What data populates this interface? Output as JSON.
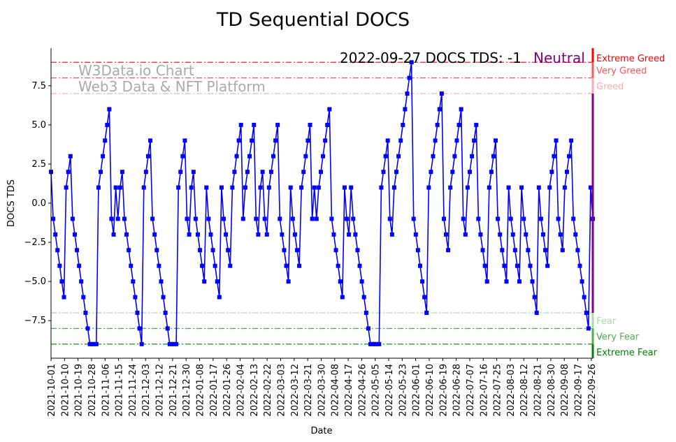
{
  "chart_data": {
    "type": "line",
    "title": "TD Sequential DOCS",
    "xlabel": "Date",
    "ylabel": "DOCS TDS",
    "ylim": [
      -9.9,
      9.9
    ],
    "yticks": [
      -7.5,
      -5.0,
      -2.5,
      0.0,
      2.5,
      5.0,
      7.5
    ],
    "ytick_labels": [
      "−7.5",
      "−5.0",
      "−2.5",
      "0.0",
      "2.5",
      "5.0",
      "7.5"
    ],
    "x_start": "2021-10-01",
    "x_end": "2022-09-27",
    "xtick_labels": [
      "2021-10-01",
      "2021-10-10",
      "2021-10-19",
      "2021-10-28",
      "2021-11-06",
      "2021-11-15",
      "2021-11-24",
      "2021-12-03",
      "2021-12-12",
      "2021-12-21",
      "2021-12-30",
      "2022-01-08",
      "2022-01-17",
      "2022-01-26",
      "2022-02-04",
      "2022-02-13",
      "2022-02-22",
      "2022-03-03",
      "2022-03-12",
      "2022-03-21",
      "2022-03-30",
      "2022-04-08",
      "2022-04-17",
      "2022-04-26",
      "2022-05-05",
      "2022-05-14",
      "2022-05-23",
      "2022-06-01",
      "2022-06-10",
      "2022-06-19",
      "2022-06-28",
      "2022-07-07",
      "2022-07-16",
      "2022-07-25",
      "2022-08-03",
      "2022-08-12",
      "2022-08-21",
      "2022-08-30",
      "2022-09-08",
      "2022-09-17",
      "2022-09-26"
    ],
    "series": [
      {
        "name": "DOCS TDS",
        "color": "#0000ff",
        "values": [
          2,
          -1,
          -2,
          -3,
          -4,
          -5,
          -6,
          1,
          2,
          3,
          -1,
          -2,
          -3,
          -4,
          -5,
          -6,
          -7,
          -8,
          -9,
          -9,
          -9,
          -9,
          1,
          2,
          3,
          4,
          5,
          6,
          -1,
          -2,
          1,
          -1,
          1,
          2,
          -1,
          -2,
          -3,
          -4,
          -5,
          -6,
          -7,
          -8,
          -9,
          1,
          2,
          3,
          4,
          -1,
          -2,
          -3,
          -4,
          -5,
          -6,
          -7,
          -8,
          -9,
          -9,
          -9,
          -9,
          1,
          2,
          3,
          4,
          -1,
          -2,
          1,
          2,
          -1,
          -2,
          -3,
          -4,
          -5,
          1,
          -1,
          -2,
          -3,
          -4,
          -5,
          -6,
          1,
          -1,
          -2,
          -3,
          -4,
          1,
          2,
          3,
          4,
          5,
          -1,
          1,
          2,
          3,
          4,
          5,
          -1,
          -2,
          1,
          2,
          -1,
          -2,
          1,
          2,
          3,
          4,
          5,
          -1,
          -2,
          -3,
          -4,
          -5,
          1,
          -1,
          -2,
          -3,
          -4,
          1,
          2,
          3,
          4,
          5,
          -1,
          1,
          -1,
          1,
          2,
          3,
          4,
          5,
          6,
          -1,
          -2,
          -3,
          -4,
          -5,
          -6,
          1,
          -1,
          -2,
          1,
          -1,
          -2,
          -3,
          -4,
          -5,
          -6,
          -7,
          -8,
          -9,
          -9,
          -9,
          -9,
          -9,
          1,
          2,
          3,
          4,
          -1,
          -2,
          1,
          2,
          3,
          4,
          5,
          6,
          7,
          8,
          9,
          -1,
          -2,
          -3,
          -4,
          -5,
          -6,
          -7,
          1,
          2,
          3,
          4,
          5,
          6,
          7,
          -1,
          -2,
          -3,
          1,
          2,
          3,
          4,
          5,
          6,
          -1,
          -2,
          1,
          2,
          3,
          4,
          5,
          -1,
          -2,
          -3,
          -4,
          -5,
          1,
          2,
          3,
          4,
          -1,
          -2,
          -3,
          -4,
          -5,
          1,
          -1,
          -2,
          -3,
          -4,
          -5,
          1,
          -1,
          -2,
          -3,
          -4,
          -5,
          -6,
          -7,
          1,
          -1,
          -2,
          -3,
          -4,
          1,
          2,
          3,
          4,
          -1,
          -2,
          -3,
          1,
          2,
          3,
          4,
          -1,
          -2,
          -3,
          -4,
          -5,
          -6,
          -7,
          -8,
          1,
          -1
        ]
      }
    ],
    "levels": [
      {
        "value": 9,
        "label": "Extreme Greed",
        "color": "#ff0000"
      },
      {
        "value": 8,
        "label": "Very Greed",
        "color": "#ff5555"
      },
      {
        "value": 7,
        "label": "Greed",
        "color": "#ffaaaa"
      },
      {
        "value": -7,
        "label": "Fear",
        "color": "#a8dba8"
      },
      {
        "value": -8,
        "label": "Very Fear",
        "color": "#4caf50"
      },
      {
        "value": -9,
        "label": "Extreme Fear",
        "color": "#008000"
      }
    ],
    "neutral_color": "#800080",
    "annotation": "2022-09-27 DOCS TDS: -1",
    "annotation_state": "Neutral",
    "watermark": [
      "W3Data.io Chart",
      "Web3 Data & NFT Platform"
    ],
    "grid": false
  }
}
